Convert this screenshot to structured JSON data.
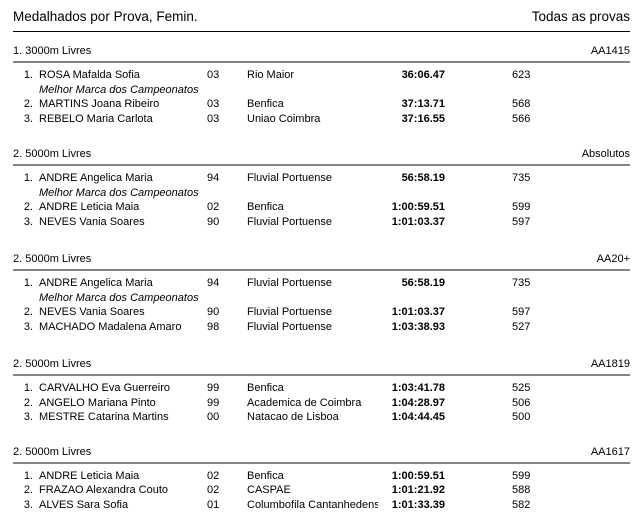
{
  "header": {
    "title": "Medalhados por Prova, Femin.",
    "filter": "Todas as provas"
  },
  "colors": {
    "text": "#000000",
    "thin_divider": "#000000",
    "thick_divider": "#848484",
    "background": "#ffffff"
  },
  "note_text": "Melhor Marca dos Campeonatos",
  "sections": [
    {
      "event": "1. 3000m Livres",
      "category": "AA1415",
      "rows": [
        {
          "rank": "1.",
          "name": "ROSA Mafalda Sofia",
          "year": "03",
          "club": "Rio Maior",
          "time": "36:06.47",
          "points": "623",
          "note": "Melhor Marca dos Campeonatos"
        },
        {
          "rank": "2.",
          "name": "MARTINS Joana Ribeiro",
          "year": "03",
          "club": "Benfica",
          "time": "37:13.71",
          "points": "568"
        },
        {
          "rank": "3.",
          "name": "REBELO Maria Carlota",
          "year": "03",
          "club": "Uniao Coimbra",
          "time": "37:16.55",
          "points": "566"
        }
      ]
    },
    {
      "event": "2. 5000m Livres",
      "category": "Absolutos",
      "rows": [
        {
          "rank": "1.",
          "name": "ANDRE Angelica Maria",
          "year": "94",
          "club": "Fluvial Portuense",
          "time": "56:58.19",
          "points": "735",
          "note": "Melhor Marca dos Campeonatos"
        },
        {
          "rank": "2.",
          "name": "ANDRE Leticia Maia",
          "year": "02",
          "club": "Benfica",
          "time": "1:00:59.51",
          "points": "599"
        },
        {
          "rank": "3.",
          "name": "NEVES Vania Soares",
          "year": "90",
          "club": "Fluvial Portuense",
          "time": "1:01:03.37",
          "points": "597"
        }
      ]
    },
    {
      "event": "2. 5000m Livres",
      "category": "AA20+",
      "rows": [
        {
          "rank": "1.",
          "name": "ANDRE Angelica Maria",
          "year": "94",
          "club": "Fluvial Portuense",
          "time": "56:58.19",
          "points": "735",
          "note": "Melhor Marca dos Campeonatos"
        },
        {
          "rank": "2.",
          "name": "NEVES Vania Soares",
          "year": "90",
          "club": "Fluvial Portuense",
          "time": "1:01:03.37",
          "points": "597"
        },
        {
          "rank": "3.",
          "name": "MACHADO Madalena Amaro",
          "year": "98",
          "club": "Fluvial Portuense",
          "time": "1:03:38.93",
          "points": "527"
        }
      ]
    },
    {
      "event": "2. 5000m Livres",
      "category": "AA1819",
      "rows": [
        {
          "rank": "1.",
          "name": "CARVALHO Eva Guerreiro",
          "year": "99",
          "club": "Benfica",
          "time": "1:03:41.78",
          "points": "525"
        },
        {
          "rank": "2.",
          "name": "ANGELO Mariana Pinto",
          "year": "99",
          "club": "Academica de Coimbra",
          "time": "1:04:28.97",
          "points": "506"
        },
        {
          "rank": "3.",
          "name": "MESTRE Catarina Martins",
          "year": "00",
          "club": "Natacao de Lisboa",
          "time": "1:04:44.45",
          "points": "500"
        }
      ]
    },
    {
      "event": "2. 5000m Livres",
      "category": "AA1617",
      "rows": [
        {
          "rank": "1.",
          "name": "ANDRE Leticia Maia",
          "year": "02",
          "club": "Benfica",
          "time": "1:00:59.51",
          "points": "599"
        },
        {
          "rank": "2.",
          "name": "FRAZAO Alexandra Couto",
          "year": "02",
          "club": "CASPAE",
          "time": "1:01:21.92",
          "points": "588"
        },
        {
          "rank": "3.",
          "name": "ALVES Sara Sofia",
          "year": "01",
          "club": "Columbofila Cantanhedens",
          "time": "1:01:33.39",
          "points": "582"
        }
      ]
    }
  ]
}
